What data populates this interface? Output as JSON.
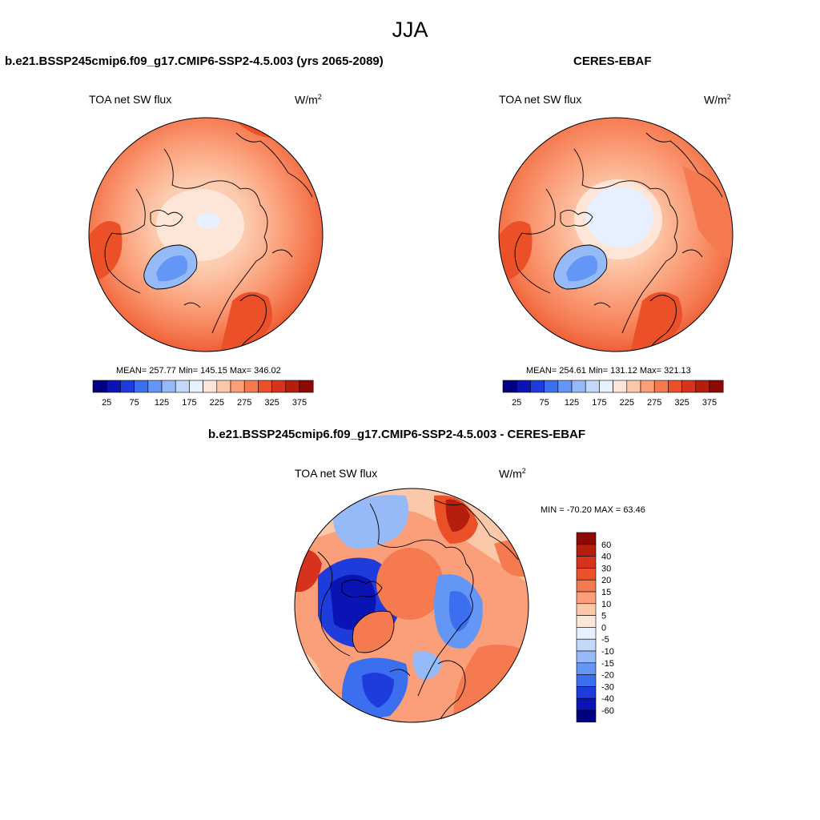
{
  "title": "JJA",
  "panels": [
    {
      "title": "b.e21.BSSP245cmip6.f09_g17.CMIP6-SSP2-4.5.003 (yrs 2065-2089)",
      "variable": "TOA net SW flux",
      "units": "W/m",
      "units_exp": "2",
      "stats": "MEAN= 257.77  Min= 145.15  Max= 346.02"
    },
    {
      "title": "CERES-EBAF",
      "variable": "TOA net SW flux",
      "units": "W/m",
      "units_exp": "2",
      "stats": "MEAN= 254.61  Min= 131.12  Max= 321.13"
    },
    {
      "title": "b.e21.BSSP245cmip6.f09_g17.CMIP6-SSP2-4.5.003 - CERES-EBAF",
      "variable": "TOA net SW flux",
      "units": "W/m",
      "units_exp": "2",
      "stats": "MIN = -70.20 MAX =  63.46"
    }
  ],
  "colorbar_abs": {
    "colors": [
      "#000080",
      "#0a14b4",
      "#1e3cdc",
      "#3c6ef0",
      "#6496f5",
      "#96b9f8",
      "#c3d7fb",
      "#e6f0ff",
      "#fde6d7",
      "#fcc8aa",
      "#fb9f7a",
      "#f57a50",
      "#eb5028",
      "#d7321e",
      "#b41e0f",
      "#8c0a05"
    ],
    "labels": [
      "25",
      "75",
      "125",
      "175",
      "225",
      "275",
      "325",
      "375"
    ]
  },
  "colorbar_diff": {
    "colors": [
      "#8c0a05",
      "#b41e0f",
      "#d7321e",
      "#eb5028",
      "#f57a50",
      "#fb9f7a",
      "#fcc8aa",
      "#fde6d7",
      "#e6f0ff",
      "#c3d7fb",
      "#96b9f8",
      "#6496f5",
      "#3c6ef0",
      "#1e3cdc",
      "#0a14b4",
      "#000080"
    ],
    "labels": [
      "60",
      "40",
      "30",
      "20",
      "15",
      "10",
      "5",
      "0",
      "-5",
      "-10",
      "-15",
      "-20",
      "-30",
      "-40",
      "-60"
    ]
  }
}
